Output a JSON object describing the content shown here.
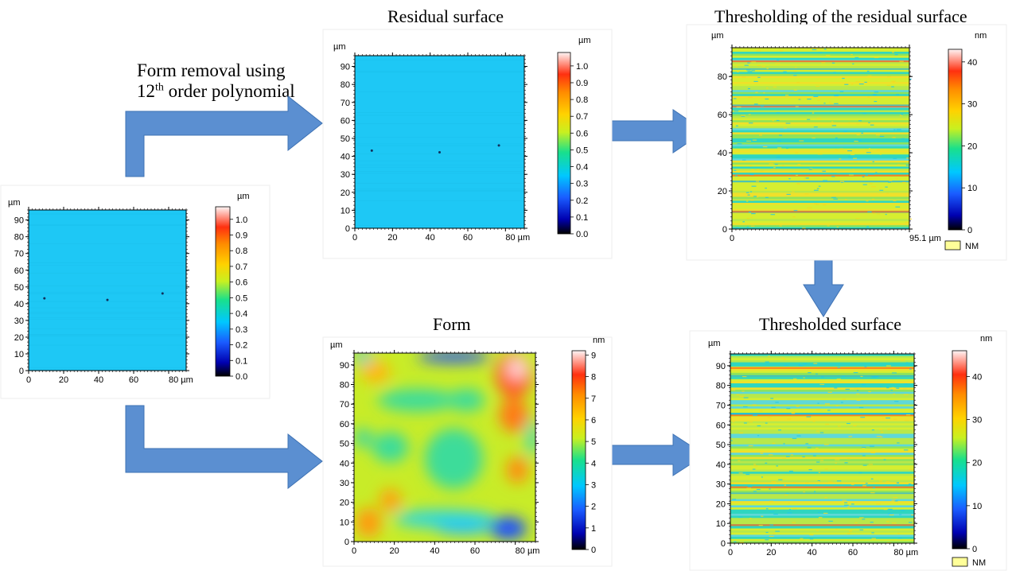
{
  "titles": {
    "residual": "Residual surface",
    "thresholding": "Thresholding of the residual surface",
    "form": "Form",
    "thresholded": "Thresholded surface"
  },
  "label": {
    "line1": "Form removal using",
    "order_num": "12",
    "order_sup": "th",
    "order_rest": " order polynomial"
  },
  "plots": {
    "original": {
      "unit_axis": "µm",
      "unit_scale": "µm",
      "y_ticks": [
        "0",
        "10",
        "20",
        "30",
        "40",
        "50",
        "60",
        "70",
        "80",
        "90"
      ],
      "x_ticks": [
        "0",
        "20",
        "40",
        "60",
        "80 µm"
      ],
      "scale_ticks": [
        "0.0",
        "0.1",
        "0.2",
        "0.3",
        "0.4",
        "0.5",
        "0.6",
        "0.7",
        "0.8",
        "0.9",
        "1.0"
      ]
    },
    "residual": {
      "unit_axis": "µm",
      "unit_scale": "µm",
      "y_ticks": [
        "0",
        "10",
        "20",
        "30",
        "40",
        "50",
        "60",
        "70",
        "80",
        "90"
      ],
      "x_ticks": [
        "0",
        "20",
        "40",
        "60",
        "80 µm"
      ],
      "scale_ticks": [
        "0.0",
        "0.1",
        "0.2",
        "0.3",
        "0.4",
        "0.5",
        "0.6",
        "0.7",
        "0.8",
        "0.9",
        "1.0"
      ]
    },
    "thresholding": {
      "unit_axis": "µm",
      "unit_scale": "nm",
      "y_ticks": [
        "0",
        "20",
        "40",
        "60",
        "80"
      ],
      "x_ticks": [
        "0",
        "95.1 µm"
      ],
      "scale_ticks": [
        "0",
        "10",
        "20",
        "30",
        "40"
      ],
      "legend": "NM"
    },
    "form": {
      "unit_axis": "µm",
      "unit_scale": "nm",
      "y_ticks": [
        "0",
        "10",
        "20",
        "30",
        "40",
        "50",
        "60",
        "70",
        "80",
        "90"
      ],
      "x_ticks": [
        "0",
        "20",
        "40",
        "60",
        "80 µm"
      ],
      "scale_ticks": [
        "0",
        "1",
        "2",
        "3",
        "4",
        "5",
        "6",
        "7",
        "8",
        "9"
      ]
    },
    "thresholded": {
      "unit_axis": "µm",
      "unit_scale": "nm",
      "y_ticks": [
        "0",
        "10",
        "20",
        "30",
        "40",
        "50",
        "60",
        "70",
        "80",
        "90"
      ],
      "x_ticks": [
        "0",
        "20",
        "40",
        "60",
        "80 µm"
      ],
      "scale_ticks": [
        "0",
        "10",
        "20",
        "30",
        "40"
      ],
      "legend": "NM"
    }
  },
  "colors": {
    "arrow": "#5b8fd1",
    "arrow_stroke": "#3f73b4",
    "surface_flat": "#1ec8f5"
  }
}
